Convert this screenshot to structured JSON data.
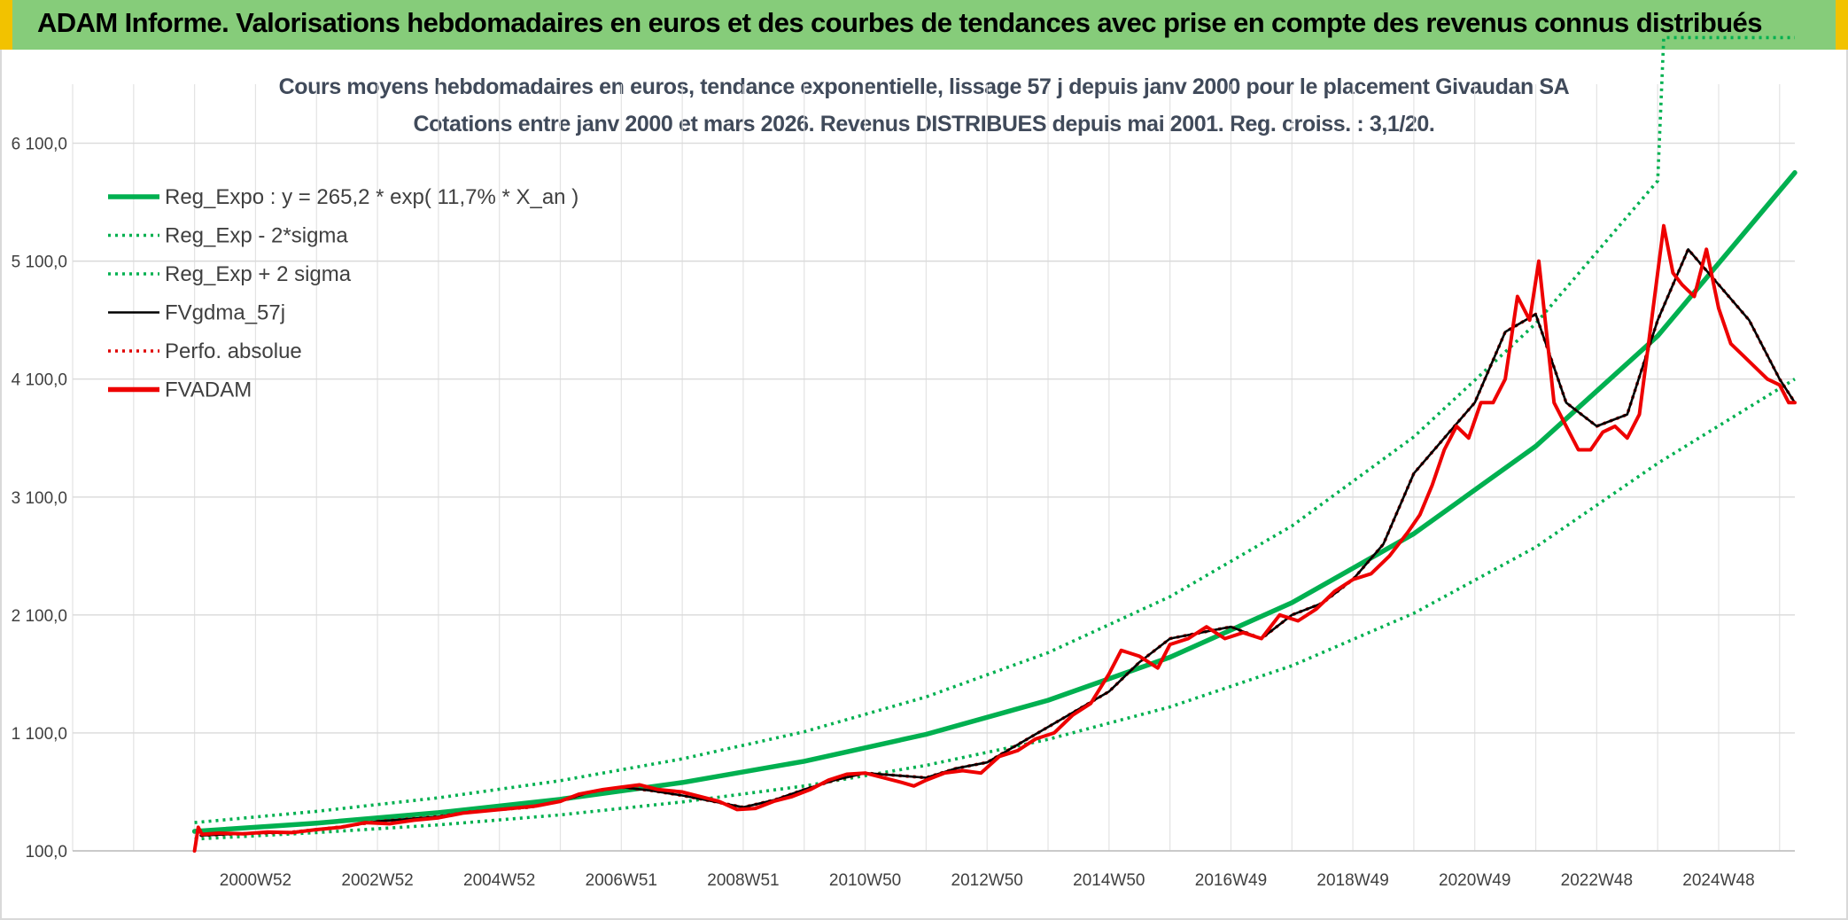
{
  "banner": {
    "title": "ADAM Informe. Valorisations hebdomadaires en euros et des courbes de tendances avec prise en compte des revenus connus distribués"
  },
  "chart_data": {
    "type": "line",
    "title": "Cours moyens hebdomadaires en euros, tendance exponentielle, lissage 57 j depuis janv 2000 pour le placement Givaudan SA",
    "subtitle": "Cotations entre janv 2000 et mars 2026. Revenus DISTRIBUES depuis mai 2001. Reg. croiss. : 3,1/20.",
    "xlabel": "",
    "ylabel": "",
    "x_range": [
      1998.0,
      2026.25
    ],
    "ylim": [
      100,
      6600
    ],
    "y_ticks": [
      100,
      1100,
      2100,
      3100,
      4100,
      5100,
      6100
    ],
    "y_tick_labels": [
      "100,0",
      "1 100,0",
      "2 100,0",
      "3 100,0",
      "4 100,0",
      "5 100,0",
      "6 100,0"
    ],
    "x_tick_labels": [
      "2000W52",
      "2002W52",
      "2004W52",
      "2006W51",
      "2008W51",
      "2010W50",
      "2012W50",
      "2014W50",
      "2016W49",
      "2018W49",
      "2020W49",
      "2022W48",
      "2024W48"
    ],
    "x_tick_positions": [
      2001,
      2003,
      2005,
      2007,
      2009,
      2011,
      2013,
      2015,
      2017,
      2019,
      2021,
      2023,
      2025
    ],
    "grid": true,
    "legend_position": "top-left",
    "colors": {
      "reg": "#00b050",
      "fv": "#000000",
      "perf": "#e00000",
      "adam": "#ee0000"
    },
    "series": [
      {
        "name": "Reg_Expo : y = 265,2 * exp( 11,7% *  X_an )",
        "style": "thick-solid",
        "color": "#00b050",
        "x": [
          2000.0,
          2002.0,
          2004.0,
          2006.0,
          2008.0,
          2010.0,
          2012.0,
          2014.0,
          2016.0,
          2018.0,
          2020.0,
          2022.0,
          2024.0,
          2026.25
        ],
        "values": [
          265,
          335,
          424,
          537,
          679,
          860,
          1088,
          1377,
          1742,
          2204,
          2789,
          3530,
          4466,
          5850
        ]
      },
      {
        "name": "Reg_Exp - 2*sigma",
        "style": "dotted",
        "color": "#00b050",
        "x": [
          2000.0,
          2002.0,
          2004.0,
          2006.0,
          2008.0,
          2010.0,
          2012.0,
          2014.0,
          2016.0,
          2018.0,
          2020.0,
          2022.0,
          2024.0,
          2026.25
        ],
        "values": [
          200,
          255,
          320,
          405,
          515,
          650,
          825,
          1045,
          1320,
          1670,
          2115,
          2675,
          3385,
          4100
        ]
      },
      {
        "name": "Reg_Exp + 2 sigma",
        "style": "dotted",
        "color": "#00b050",
        "x": [
          2000.0,
          2002.0,
          2004.0,
          2006.0,
          2008.0,
          2010.0,
          2012.0,
          2014.0,
          2016.0,
          2018.0,
          2020.0,
          2022.0,
          2024.0,
          2024.1,
          2026.25
        ],
        "values": [
          340,
          435,
          550,
          695,
          880,
          1110,
          1405,
          1780,
          2255,
          2855,
          3610,
          4570,
          5780,
          6995,
          6995
        ]
      },
      {
        "name": "FVgdma_57j",
        "style": "solid",
        "color": "#000000",
        "x": [
          2000.1,
          2000.5,
          2001.0,
          2001.5,
          2002.0,
          2002.5,
          2003.0,
          2003.5,
          2004.0,
          2004.5,
          2005.0,
          2005.5,
          2006.0,
          2006.5,
          2007.0,
          2007.5,
          2008.0,
          2008.5,
          2009.0,
          2009.5,
          2010.0,
          2010.5,
          2011.0,
          2011.5,
          2012.0,
          2012.5,
          2013.0,
          2013.5,
          2014.0,
          2014.5,
          2015.0,
          2015.5,
          2016.0,
          2016.5,
          2017.0,
          2017.5,
          2018.0,
          2018.5,
          2019.0,
          2019.5,
          2020.0,
          2020.5,
          2021.0,
          2021.5,
          2022.0,
          2022.5,
          2023.0,
          2023.5,
          2024.0,
          2024.5,
          2025.0,
          2025.5,
          2026.0,
          2026.25
        ],
        "values": [
          230,
          240,
          250,
          255,
          280,
          310,
          350,
          370,
          390,
          430,
          450,
          470,
          520,
          600,
          640,
          610,
          570,
          520,
          470,
          530,
          620,
          700,
          760,
          740,
          720,
          800,
          850,
          1000,
          1150,
          1300,
          1450,
          1700,
          1900,
          1950,
          2000,
          1900,
          2100,
          2200,
          2400,
          2700,
          3300,
          3600,
          3900,
          4500,
          4650,
          3900,
          3700,
          3800,
          4600,
          5200,
          4900,
          4600,
          4100,
          3900
        ]
      },
      {
        "name": "Perfo. absolue",
        "style": "dotted",
        "color": "#e00000",
        "x": [
          2000.1,
          2000.5,
          2001.0,
          2001.5,
          2002.0,
          2002.5,
          2003.0,
          2003.5,
          2004.0,
          2004.5,
          2005.0,
          2005.5,
          2006.0,
          2006.5,
          2007.0,
          2007.5,
          2008.0,
          2008.5,
          2009.0,
          2009.5,
          2010.0,
          2010.5,
          2011.0,
          2011.5,
          2012.0,
          2012.5,
          2013.0,
          2013.5,
          2014.0,
          2014.5,
          2015.0,
          2015.5,
          2016.0,
          2016.5,
          2017.0,
          2017.5,
          2018.0,
          2018.5,
          2019.0,
          2019.5,
          2020.0,
          2020.5,
          2021.0,
          2021.5,
          2022.0,
          2022.5,
          2023.0,
          2023.5,
          2024.0,
          2024.5,
          2025.0,
          2025.5,
          2026.0,
          2026.25
        ],
        "values": [
          230,
          240,
          250,
          255,
          280,
          310,
          350,
          370,
          390,
          430,
          450,
          470,
          520,
          600,
          640,
          610,
          570,
          520,
          470,
          530,
          620,
          700,
          760,
          740,
          720,
          800,
          850,
          1000,
          1150,
          1300,
          1450,
          1700,
          1900,
          1950,
          2000,
          1900,
          2100,
          2200,
          2400,
          2700,
          3300,
          3600,
          3900,
          4500,
          4650,
          3900,
          3700,
          3800,
          4600,
          5200,
          4900,
          4600,
          4100,
          3900
        ]
      },
      {
        "name": "FVADAM",
        "style": "thick-solid",
        "color": "#ee0000",
        "x": [
          2000.0,
          2000.06,
          2000.12,
          2000.4,
          2000.8,
          2001.2,
          2001.6,
          2002.0,
          2002.4,
          2002.8,
          2003.2,
          2003.6,
          2004.0,
          2004.4,
          2004.8,
          2005.2,
          2005.6,
          2006.0,
          2006.3,
          2006.7,
          2007.0,
          2007.3,
          2007.6,
          2008.0,
          2008.3,
          2008.6,
          2008.9,
          2009.2,
          2009.5,
          2009.8,
          2010.1,
          2010.4,
          2010.7,
          2011.0,
          2011.3,
          2011.6,
          2011.8,
          2012.0,
          2012.3,
          2012.6,
          2012.9,
          2013.2,
          2013.5,
          2013.8,
          2014.1,
          2014.4,
          2014.7,
          2015.0,
          2015.2,
          2015.5,
          2015.8,
          2016.0,
          2016.3,
          2016.6,
          2016.9,
          2017.2,
          2017.5,
          2017.8,
          2018.1,
          2018.4,
          2018.7,
          2019.0,
          2019.3,
          2019.6,
          2019.9,
          2020.1,
          2020.3,
          2020.5,
          2020.7,
          2020.9,
          2021.1,
          2021.3,
          2021.5,
          2021.7,
          2021.9,
          2022.05,
          2022.3,
          2022.5,
          2022.7,
          2022.9,
          2023.1,
          2023.3,
          2023.5,
          2023.7,
          2023.9,
          2024.1,
          2024.25,
          2024.4,
          2024.6,
          2024.8,
          2025.0,
          2025.2,
          2025.4,
          2025.6,
          2025.8,
          2026.0,
          2026.15,
          2026.25
        ],
        "values": [
          100,
          300,
          240,
          250,
          245,
          260,
          255,
          280,
          300,
          340,
          330,
          360,
          380,
          420,
          440,
          460,
          480,
          520,
          580,
          620,
          640,
          660,
          620,
          600,
          560,
          520,
          450,
          460,
          520,
          560,
          620,
          700,
          750,
          760,
          720,
          680,
          650,
          700,
          760,
          780,
          760,
          900,
          950,
          1050,
          1100,
          1250,
          1350,
          1600,
          1800,
          1750,
          1650,
          1850,
          1900,
          2000,
          1900,
          1950,
          1900,
          2100,
          2050,
          2150,
          2300,
          2400,
          2450,
          2600,
          2800,
          2950,
          3200,
          3500,
          3700,
          3600,
          3900,
          3900,
          4100,
          4800,
          4600,
          5100,
          3900,
          3700,
          3500,
          3500,
          3650,
          3700,
          3600,
          3800,
          4600,
          5400,
          5000,
          4900,
          4800,
          5200,
          4700,
          4400,
          4300,
          4200,
          4100,
          4050,
          3900,
          3900
        ]
      }
    ]
  }
}
